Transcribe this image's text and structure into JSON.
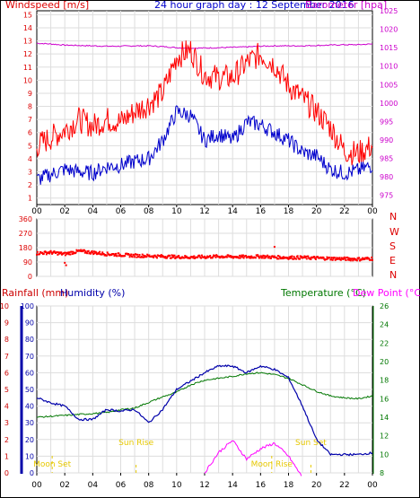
{
  "page": {
    "title": "24 hour graph day : 12 September 2016"
  },
  "panel_top": {
    "left_label": "Windspeed [m/s]",
    "right_label": "Barometer [hpa]",
    "left_ticks": [
      "1",
      "2",
      "3",
      "4",
      "5",
      "6",
      "7",
      "8",
      "9",
      "10",
      "11",
      "12",
      "13",
      "14",
      "15"
    ],
    "right_ticks": [
      "975",
      "980",
      "985",
      "990",
      "995",
      "1000",
      "1005",
      "1010",
      "1015",
      "1020",
      "1025"
    ],
    "x_ticks": [
      "00",
      "02",
      "04",
      "06",
      "08",
      "10",
      "12",
      "14",
      "16",
      "18",
      "20",
      "22",
      "00"
    ]
  },
  "panel_dir": {
    "left_ticks": [
      "0",
      "90",
      "180",
      "270",
      "360"
    ],
    "right_labels": [
      "N",
      "W",
      "S",
      "E",
      "N"
    ]
  },
  "panel_bottom": {
    "rain_label": "Rainfall (mm)",
    "humidity_label": "Humidity (%)",
    "temp_label": "Temperature (°C)",
    "dew_label": "Dew Point (°C)",
    "rain_ticks": [
      "0",
      "1",
      "2",
      "3",
      "4",
      "5",
      "6",
      "7",
      "8",
      "9",
      "10"
    ],
    "humidity_ticks": [
      "0",
      "10",
      "20",
      "30",
      "40",
      "50",
      "60",
      "70",
      "80",
      "90",
      "100"
    ],
    "temp_ticks": [
      "8",
      "10",
      "12",
      "14",
      "16",
      "18",
      "20",
      "22",
      "24",
      "26"
    ],
    "x_ticks": [
      "00",
      "02",
      "04",
      "06",
      "08",
      "10",
      "12",
      "14",
      "16",
      "18",
      "20",
      "22",
      "00"
    ],
    "annotations": {
      "moon_set": "Moon Set",
      "sun_rise": "Sun Rise",
      "moon_rise": "Moon Rise",
      "sun_set": "Sun Set"
    }
  },
  "colors": {
    "gust": "#ff0000",
    "avg_wind": "#0000cc",
    "barometer": "#cc00cc",
    "direction": "#ff0000",
    "humidity": "#0000aa",
    "temperature": "#007700",
    "dewpoint": "#ff00ff",
    "rain_axis": "#cc0000",
    "annot": "#e6c800"
  },
  "chart_data": [
    {
      "type": "line",
      "title": "24 hour graph day : 12 September 2016",
      "xlabel": "",
      "ylabel": "Windspeed [m/s]",
      "y2label": "Barometer [hpa]",
      "x": [
        0,
        1,
        2,
        3,
        4,
        5,
        6,
        7,
        8,
        9,
        10,
        11,
        12,
        13,
        14,
        15,
        16,
        17,
        18,
        19,
        20,
        21,
        22,
        23,
        24
      ],
      "ylim": [
        0.5,
        15.3
      ],
      "y2lim": [
        972.5,
        1025
      ],
      "series": [
        {
          "name": "Windspeed [m/s]",
          "role": "gust",
          "values": [
            5.0,
            5.6,
            6.2,
            7.0,
            6.5,
            7.0,
            6.8,
            7.6,
            8.2,
            9.0,
            11.8,
            12.3,
            10.4,
            10.2,
            10.2,
            11.3,
            12.0,
            11.2,
            9.6,
            8.6,
            7.6,
            6.4,
            4.6,
            4.4,
            5.0
          ]
        },
        {
          "name": "Windspeed [m/s]",
          "role": "average",
          "values": [
            2.4,
            2.8,
            3.2,
            3.0,
            2.9,
            3.4,
            3.5,
            3.8,
            4.0,
            5.4,
            7.6,
            7.3,
            5.4,
            5.9,
            5.4,
            6.8,
            6.6,
            6.0,
            5.4,
            4.5,
            4.2,
            3.2,
            2.9,
            3.1,
            3.5
          ]
        },
        {
          "name": "Barometer [hpa]",
          "role": "barometer",
          "axis": "right",
          "values": [
            1016.2,
            1016.0,
            1015.7,
            1015.6,
            1015.5,
            1015.4,
            1015.4,
            1015.5,
            1015.5,
            1015.3,
            1015.0,
            1014.9,
            1014.9,
            1015.0,
            1015.1,
            1015.2,
            1015.4,
            1015.5,
            1015.5,
            1015.5,
            1015.6,
            1015.7,
            1015.8,
            1015.8,
            1016.0
          ]
        }
      ]
    },
    {
      "type": "scatter",
      "ylabel": "",
      "ylim": [
        0,
        360
      ],
      "x": [
        0,
        1,
        2,
        3,
        4,
        5,
        6,
        7,
        8,
        9,
        10,
        11,
        12,
        13,
        14,
        15,
        16,
        17,
        18,
        19,
        20,
        21,
        22,
        23,
        24
      ],
      "series": [
        {
          "name": "direction",
          "values": [
            145,
            150,
            140,
            158,
            150,
            140,
            135,
            130,
            128,
            125,
            122,
            120,
            122,
            125,
            123,
            122,
            125,
            120,
            118,
            118,
            115,
            112,
            110,
            108,
            112
          ]
        }
      ],
      "outliers": [
        {
          "x": 2.0,
          "y": 85
        },
        {
          "x": 2.1,
          "y": 70
        },
        {
          "x": 17.0,
          "y": 185
        }
      ]
    },
    {
      "type": "line",
      "ylabel": "Humidity (%)",
      "y2label": "Temperature (°C)",
      "ylim": [
        0,
        100
      ],
      "y2lim": [
        8,
        26
      ],
      "rain_ylim": [
        0,
        10
      ],
      "x": [
        0,
        1,
        2,
        3,
        4,
        5,
        6,
        7,
        8,
        9,
        10,
        11,
        12,
        13,
        14,
        15,
        16,
        17,
        18,
        19,
        20,
        21,
        22,
        23,
        24
      ],
      "series": [
        {
          "name": "Humidity (%)",
          "role": "humidity",
          "axis": "left",
          "values": [
            45,
            42,
            40,
            32,
            32,
            38,
            37,
            38,
            30,
            38,
            50,
            55,
            60,
            64,
            64,
            60,
            64,
            62,
            57,
            40,
            20,
            11,
            11,
            11,
            12
          ]
        },
        {
          "name": "Temperature (°C)",
          "role": "temperature",
          "axis": "right",
          "values": [
            14.0,
            14.1,
            14.2,
            14.3,
            14.4,
            14.5,
            14.8,
            15.0,
            15.6,
            16.2,
            16.7,
            17.5,
            18.0,
            18.2,
            18.4,
            18.7,
            18.8,
            18.6,
            18.2,
            17.5,
            16.8,
            16.3,
            16.1,
            16.0,
            16.3
          ]
        },
        {
          "name": "Dew Point (°C)",
          "role": "dewpoint",
          "axis": "right",
          "values": [
            null,
            null,
            null,
            null,
            null,
            null,
            null,
            null,
            null,
            null,
            null,
            null,
            8,
            10.2,
            11.5,
            9.5,
            10.6,
            11.2,
            9.8,
            7.5,
            null,
            null,
            null,
            null,
            null
          ]
        },
        {
          "name": "Rainfall (mm)",
          "role": "rain",
          "axis": "rain",
          "values": [
            0,
            0,
            0,
            0,
            0,
            0,
            0,
            0,
            0,
            0,
            0,
            0,
            0,
            0,
            0,
            0,
            0,
            0,
            0,
            0,
            0,
            0,
            0,
            0,
            0
          ]
        }
      ],
      "events": {
        "moon_set_hour": 1.1,
        "sun_rise_hour": 7.1,
        "moon_rise_hour": 16.8,
        "sun_set_hour": 19.6
      }
    }
  ]
}
